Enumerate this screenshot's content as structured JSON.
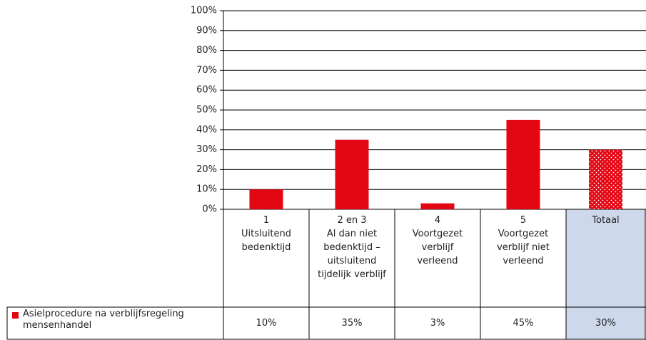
{
  "chart_data": {
    "type": "bar",
    "categories": [
      "1\nUitsluitend\nbedenktijd",
      "2 en 3\nAl dan niet\nbedenktijd –\nuitsluitend\ntijdelijk verblijf",
      "4\nVoortgezet\nverblijf\nverleend",
      "5\nVoortgezet\nverblijf niet\nverleend",
      "Totaal"
    ],
    "series": [
      {
        "name": "Asielprocedure na verblijfsregeling mensenhandel",
        "color": "#e30613",
        "values": [
          10,
          35,
          3,
          45,
          30
        ],
        "value_labels": [
          "10%",
          "35%",
          "3%",
          "45%",
          "30%"
        ]
      }
    ],
    "highlight": [
      false,
      false,
      false,
      false,
      true
    ],
    "ylim": [
      0,
      100
    ],
    "yticks": [
      {
        "value": 0,
        "label": "0%"
      },
      {
        "value": 10,
        "label": "10%"
      },
      {
        "value": 20,
        "label": "20%"
      },
      {
        "value": 30,
        "label": "30%"
      },
      {
        "value": 40,
        "label": "40%"
      },
      {
        "value": 50,
        "label": "50%"
      },
      {
        "value": 60,
        "label": "60%"
      },
      {
        "value": 70,
        "label": "70%"
      },
      {
        "value": 80,
        "label": "80%"
      },
      {
        "value": 90,
        "label": "90%"
      },
      {
        "value": 100,
        "label": "100%"
      }
    ],
    "grid": true
  }
}
